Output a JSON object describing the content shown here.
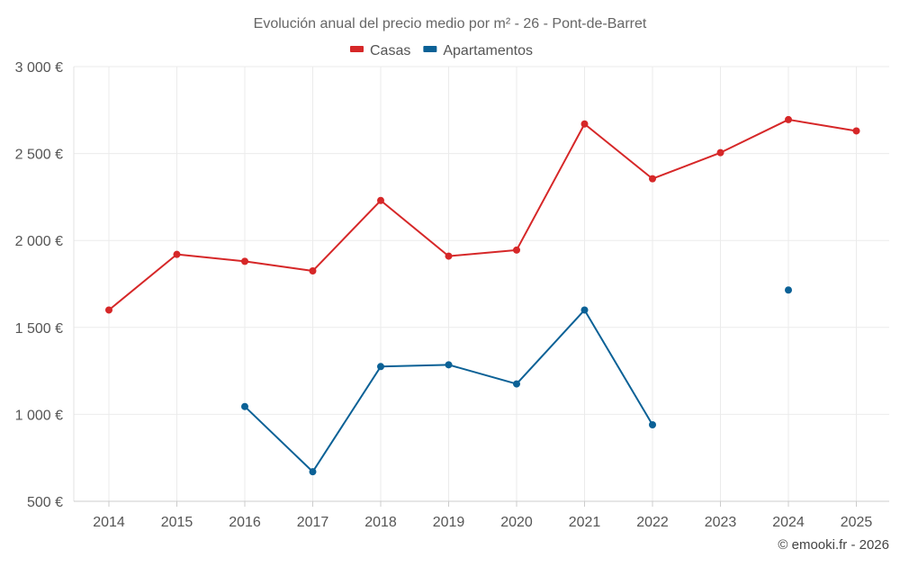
{
  "chart_data": {
    "type": "line",
    "title": "Evolución anual del precio medio por m² - 26 - Pont-de-Barret",
    "x": [
      "2014",
      "2015",
      "2016",
      "2017",
      "2018",
      "2019",
      "2020",
      "2021",
      "2022",
      "2023",
      "2024",
      "2025"
    ],
    "series": [
      {
        "name": "Casas",
        "color": "#d62728",
        "values": [
          1600,
          1920,
          1880,
          1825,
          2230,
          1910,
          1945,
          2670,
          2355,
          2505,
          2695,
          2630
        ]
      },
      {
        "name": "Apartamentos",
        "color": "#0b6196",
        "values": [
          null,
          null,
          1045,
          670,
          1275,
          1285,
          1175,
          1600,
          940,
          null,
          1715,
          null
        ]
      }
    ],
    "ylim": [
      500,
      3000
    ],
    "yticks": [
      500,
      1000,
      1500,
      2000,
      2500,
      3000
    ],
    "ytick_labels": [
      "500 €",
      "1 000 €",
      "1 500 €",
      "2 000 €",
      "2 500 €",
      "3 000 €"
    ],
    "legend": "top-center",
    "grid": true,
    "xlabel": "",
    "ylabel": ""
  },
  "credit": "© emooki.fr - 2026"
}
